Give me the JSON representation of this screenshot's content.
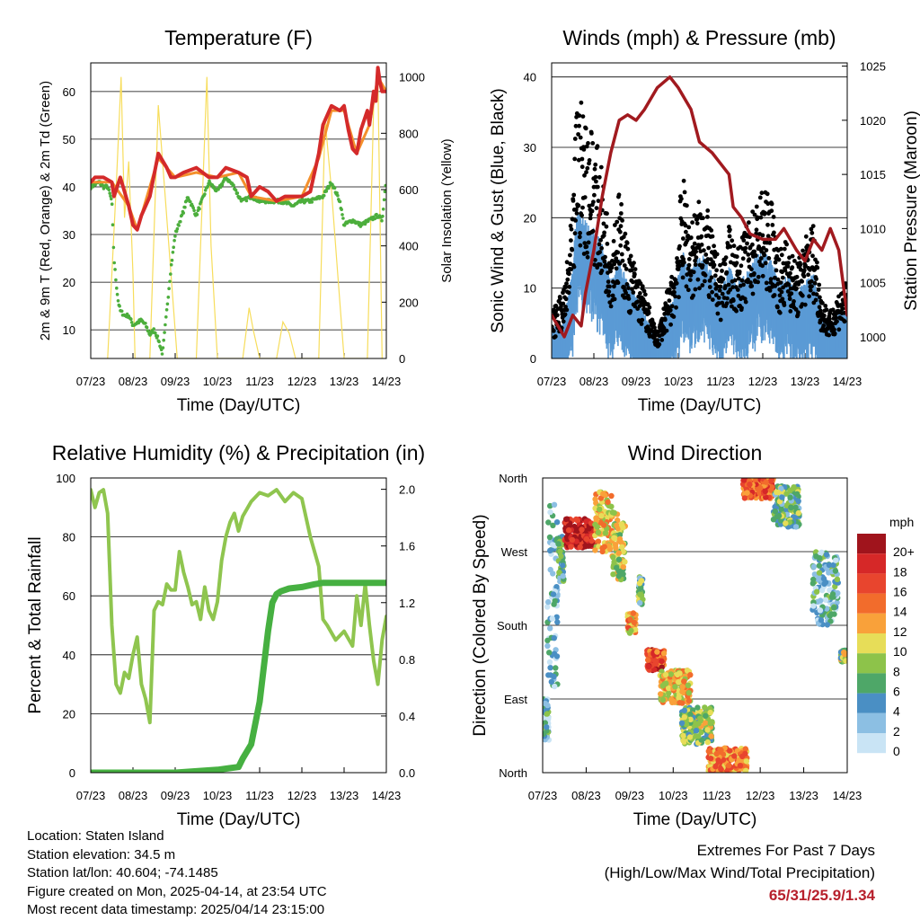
{
  "chart_data": [
    {
      "id": "temperature",
      "type": "line",
      "title": "Temperature (F)",
      "xlabel": "Time (Day/UTC)",
      "ylabel_left": "2m & 9m T (Red, Orange) & 2m Td (Green)",
      "ylabel_right": "Solar Insolation (Yellow)",
      "x_ticks": [
        "07/23",
        "08/23",
        "09/23",
        "10/23",
        "11/23",
        "12/23",
        "13/23",
        "14/23"
      ],
      "xlim": [
        0,
        7
      ],
      "ylim_left": [
        4,
        66
      ],
      "ylim_right": [
        0,
        1050
      ],
      "y_ticks_left": [
        10,
        20,
        30,
        40,
        50,
        60
      ],
      "y_ticks_right": [
        0,
        200,
        400,
        600,
        800,
        1000
      ],
      "grid": true,
      "colors": {
        "t2m": "#d42a2a",
        "t9m": "#f4902c",
        "td": "#4cae3c",
        "solar": "#f7dd5c"
      },
      "series": [
        {
          "key": "t2m",
          "axis": "left",
          "x": [
            0,
            0.1,
            0.3,
            0.5,
            0.55,
            0.7,
            0.9,
            1.0,
            1.1,
            1.2,
            1.4,
            1.6,
            1.8,
            1.9,
            2.0,
            2.2,
            2.5,
            2.8,
            3.0,
            3.2,
            3.5,
            3.7,
            3.8,
            4.0,
            4.2,
            4.4,
            4.6,
            4.8,
            5.0,
            5.2,
            5.4,
            5.5,
            5.7,
            5.9,
            6.0,
            6.1,
            6.2,
            6.3,
            6.4,
            6.55,
            6.6,
            6.7,
            6.75,
            6.8,
            6.85,
            6.9,
            7.0
          ],
          "y": [
            41,
            42,
            42,
            41,
            38,
            42,
            36,
            32,
            31,
            34,
            38,
            47,
            44,
            42,
            42,
            43,
            44,
            42,
            42,
            44,
            43,
            42,
            38,
            40,
            39,
            37,
            38,
            38,
            38,
            39,
            47,
            53,
            57,
            56,
            57,
            52,
            48,
            47,
            52,
            56,
            53,
            60,
            58,
            65,
            62,
            60,
            60
          ]
        },
        {
          "key": "t9m",
          "axis": "left",
          "x": [
            0,
            0.5,
            0.9,
            1.1,
            1.6,
            2.0,
            2.5,
            3.0,
            3.5,
            3.8,
            4.4,
            5.0,
            5.4,
            5.7,
            6.0,
            6.3,
            6.6,
            6.8,
            7.0
          ],
          "y": [
            41,
            41,
            36,
            31,
            46,
            42,
            43,
            42,
            43,
            38,
            37,
            38,
            46,
            56,
            56,
            47,
            53,
            63,
            60
          ]
        },
        {
          "key": "td",
          "axis": "left",
          "x": [
            0,
            0.2,
            0.3,
            0.4,
            0.5,
            0.55,
            0.6,
            0.65,
            0.7,
            0.8,
            0.9,
            1.0,
            1.2,
            1.3,
            1.4,
            1.5,
            1.6,
            1.7,
            1.9,
            2.0,
            2.2,
            2.3,
            2.5,
            2.8,
            3.0,
            3.2,
            3.4,
            3.5,
            3.6,
            3.8,
            4.0,
            4.2,
            4.5,
            4.8,
            5.0,
            5.2,
            5.5,
            5.7,
            5.9,
            6.0,
            6.2,
            6.4,
            6.6,
            6.8,
            6.9,
            7.0
          ],
          "y": [
            40,
            41,
            40,
            40,
            37,
            25,
            20,
            16,
            14,
            13,
            13,
            11,
            12,
            11,
            9,
            10,
            8,
            5,
            23,
            30,
            35,
            38,
            34,
            41,
            39,
            42,
            40,
            38,
            37,
            38,
            37,
            37,
            37,
            36,
            37,
            37,
            38,
            41,
            37,
            32,
            33,
            32,
            33,
            34,
            33,
            42
          ]
        },
        {
          "key": "solar",
          "axis": "right",
          "x": [
            0.4,
            0.6,
            0.72,
            0.8,
            0.9,
            1.0,
            1.05,
            1.4,
            1.6,
            1.75,
            1.9,
            2.05,
            2.5,
            2.65,
            2.75,
            2.85,
            3.0,
            3.6,
            3.75,
            3.85,
            4.0,
            4.4,
            4.55,
            4.7,
            4.85,
            5.4,
            5.55,
            5.7,
            5.85,
            6.0,
            6.55,
            6.7,
            6.8,
            6.9
          ],
          "y": [
            0,
            600,
            1000,
            500,
            700,
            300,
            0,
            0,
            900,
            600,
            300,
            0,
            0,
            600,
            1000,
            400,
            0,
            0,
            180,
            100,
            0,
            0,
            130,
            90,
            0,
            0,
            850,
            600,
            300,
            0,
            0,
            900,
            1000,
            0
          ]
        }
      ]
    },
    {
      "id": "winds",
      "type": "scatter",
      "title": "Winds (mph) & Pressure (mb)",
      "xlabel": "Time (Day/UTC)",
      "ylabel_left": "Sonic Wind & Gust (Blue, Black)",
      "ylabel_right": "Station Pressure (Maroon)",
      "x_ticks": [
        "07/23",
        "08/23",
        "09/23",
        "10/23",
        "11/23",
        "12/23",
        "13/23",
        "14/23"
      ],
      "xlim": [
        0,
        7
      ],
      "ylim_left": [
        0,
        42
      ],
      "ylim_right": [
        998,
        1025.3
      ],
      "y_ticks_left": [
        0,
        10,
        20,
        30,
        40
      ],
      "y_ticks_right": [
        1000,
        1005,
        1010,
        1015,
        1020,
        1025
      ],
      "grid": true,
      "colors": {
        "wind": "#5b9bd5",
        "gust": "#000000",
        "pressure": "#a11a1f"
      },
      "series": [
        {
          "key": "gust_envelope",
          "axis": "left",
          "x": [
            0,
            0.3,
            0.5,
            0.6,
            0.8,
            1.0,
            1.2,
            1.4,
            1.6,
            1.8,
            2.0,
            2.2,
            2.5,
            2.7,
            2.9,
            3.1,
            3.3,
            3.6,
            3.8,
            4.0,
            4.2,
            4.4,
            4.6,
            4.8,
            5.0,
            5.2,
            5.4,
            5.6,
            5.8,
            6.0,
            6.2,
            6.4,
            6.6,
            6.8,
            7.0
          ],
          "y": [
            6,
            9,
            20,
            35,
            32,
            30,
            24,
            16,
            22,
            15,
            12,
            9,
            3,
            8,
            12,
            24,
            18,
            22,
            16,
            12,
            17,
            14,
            17,
            20,
            22,
            21,
            14,
            16,
            12,
            16,
            18,
            8,
            6,
            9,
            10
          ]
        },
        {
          "key": "wind_envelope",
          "axis": "left",
          "x": [
            0,
            0.3,
            0.5,
            0.6,
            0.8,
            1.0,
            1.2,
            1.4,
            1.6,
            1.8,
            2.0,
            2.2,
            2.5,
            2.7,
            2.9,
            3.1,
            3.3,
            3.6,
            3.8,
            4.0,
            4.2,
            4.4,
            4.6,
            4.8,
            5.0,
            5.2,
            5.4,
            5.6,
            5.8,
            6.0,
            6.2,
            6.4,
            6.6,
            6.8,
            7.0
          ],
          "y": [
            4,
            5,
            12,
            20,
            18,
            17,
            15,
            10,
            13,
            10,
            8,
            6,
            2,
            6,
            8,
            14,
            12,
            14,
            11,
            9,
            12,
            10,
            11,
            13,
            14,
            13,
            10,
            11,
            9,
            10,
            11,
            6,
            4,
            6,
            7
          ]
        },
        {
          "key": "pressure",
          "axis": "right",
          "x": [
            0,
            0.3,
            0.5,
            0.7,
            0.8,
            1.0,
            1.2,
            1.4,
            1.6,
            1.8,
            2.0,
            2.2,
            2.5,
            2.8,
            3.0,
            3.3,
            3.5,
            3.8,
            4.0,
            4.2,
            4.3,
            4.5,
            4.7,
            5.0,
            5.3,
            5.5,
            5.8,
            6.0,
            6.2,
            6.4,
            6.6,
            6.8,
            7.0
          ],
          "y": [
            1002,
            1000,
            1002,
            1001,
            1004,
            1008,
            1013,
            1017,
            1020,
            1020.5,
            1020,
            1021,
            1023,
            1024,
            1023,
            1021,
            1018,
            1017,
            1016,
            1015,
            1012,
            1011,
            1009.5,
            1009,
            1009,
            1010,
            1008,
            1007,
            1009,
            1008,
            1010,
            1008,
            1002
          ]
        }
      ]
    },
    {
      "id": "humidity",
      "type": "line",
      "title": "Relative Humidity (%) & Precipitation (in)",
      "xlabel": "Time (Day/UTC)",
      "ylabel_left": "Percent & Total Rainfall",
      "x_ticks": [
        "07/23",
        "08/23",
        "09/23",
        "10/23",
        "11/23",
        "12/23",
        "13/23",
        "14/23"
      ],
      "xlim": [
        0,
        7
      ],
      "ylim_left": [
        0,
        100
      ],
      "ylim_right": [
        0,
        2.08
      ],
      "y_ticks_left": [
        0,
        20,
        40,
        60,
        80,
        100
      ],
      "y_ticks_right": [
        "0.0",
        "0.4",
        "0.8",
        "1.2",
        "1.6",
        "2.0"
      ],
      "grid": true,
      "colors": {
        "rh": "#8fc54f",
        "precip": "#46b041"
      },
      "series": [
        {
          "key": "rh",
          "axis": "left",
          "x": [
            0,
            0.1,
            0.2,
            0.3,
            0.4,
            0.5,
            0.6,
            0.7,
            0.8,
            0.9,
            1.0,
            1.1,
            1.2,
            1.3,
            1.4,
            1.5,
            1.6,
            1.7,
            1.8,
            1.9,
            2.0,
            2.1,
            2.2,
            2.3,
            2.4,
            2.5,
            2.6,
            2.7,
            2.8,
            2.9,
            3.0,
            3.1,
            3.2,
            3.3,
            3.4,
            3.5,
            3.6,
            3.8,
            4.0,
            4.2,
            4.4,
            4.6,
            4.8,
            5.0,
            5.2,
            5.4,
            5.5,
            5.6,
            5.8,
            6.0,
            6.2,
            6.3,
            6.4,
            6.5,
            6.6,
            6.7,
            6.8,
            6.9,
            7.0
          ],
          "y": [
            96,
            90,
            95,
            96,
            88,
            50,
            30,
            27,
            34,
            32,
            40,
            46,
            30,
            25,
            17,
            55,
            58,
            57,
            64,
            62,
            62,
            75,
            68,
            63,
            57,
            58,
            52,
            63,
            55,
            52,
            58,
            72,
            80,
            85,
            88,
            82,
            87,
            92,
            95,
            94,
            96,
            92,
            95,
            93,
            80,
            70,
            52,
            50,
            45,
            48,
            43,
            60,
            50,
            64,
            50,
            38,
            30,
            45,
            53
          ]
        },
        {
          "key": "precip",
          "axis": "right",
          "x": [
            0,
            1,
            2,
            3,
            3.5,
            3.6,
            3.8,
            4.0,
            4.2,
            4.3,
            4.4,
            4.5,
            4.7,
            5.0,
            5.3,
            5.5,
            6.0,
            7.0
          ],
          "y": [
            0,
            0,
            0,
            0.02,
            0.04,
            0.1,
            0.2,
            0.5,
            1.0,
            1.2,
            1.26,
            1.28,
            1.3,
            1.31,
            1.33,
            1.34,
            1.34,
            1.34
          ]
        }
      ]
    },
    {
      "id": "wind_direction",
      "type": "scatter",
      "title": "Wind Direction",
      "xlabel": "Time (Day/UTC)",
      "ylabel": "Direction (Colored By Speed)",
      "x_ticks": [
        "07/23",
        "08/23",
        "09/23",
        "10/23",
        "11/23",
        "12/23",
        "13/23",
        "14/23"
      ],
      "xlim": [
        0,
        7
      ],
      "ylim": [
        0,
        360
      ],
      "y_ticks": [
        "North",
        "East",
        "South",
        "West",
        "North"
      ],
      "grid": true,
      "colorbar": {
        "title": "mph",
        "labels": [
          "20+",
          "18",
          "16",
          "14",
          "12",
          "10",
          "8",
          "6",
          "4",
          "2",
          "0"
        ],
        "colors": [
          "#a0141c",
          "#d62828",
          "#e8452e",
          "#f26c2c",
          "#f9a13a",
          "#e7dd58",
          "#8dc34a",
          "#4ea768",
          "#4a8fc4",
          "#8cbfe3",
          "#c9e4f5"
        ]
      },
      "clusters": [
        {
          "x": [
            0.0,
            0.15
          ],
          "dir": [
            40,
            90
          ],
          "speed": 4
        },
        {
          "x": [
            0.1,
            0.35
          ],
          "dir": [
            100,
            330
          ],
          "speed": 3
        },
        {
          "x": [
            0.35,
            0.5
          ],
          "dir": [
            230,
            290
          ],
          "speed": 5
        },
        {
          "x": [
            0.5,
            1.2
          ],
          "dir": [
            275,
            310
          ],
          "speed": 19
        },
        {
          "x": [
            1.2,
            1.6
          ],
          "dir": [
            270,
            345
          ],
          "speed": 11
        },
        {
          "x": [
            1.6,
            1.9
          ],
          "dir": [
            235,
            320
          ],
          "speed": 9
        },
        {
          "x": [
            1.95,
            2.15
          ],
          "dir": [
            170,
            195
          ],
          "speed": 12
        },
        {
          "x": [
            2.2,
            2.3
          ],
          "dir": [
            205,
            240
          ],
          "speed": 6
        },
        {
          "x": [
            2.4,
            2.8
          ],
          "dir": [
            125,
            150
          ],
          "speed": 16
        },
        {
          "x": [
            2.7,
            3.4
          ],
          "dir": [
            85,
            125
          ],
          "speed": 11
        },
        {
          "x": [
            3.2,
            3.9
          ],
          "dir": [
            35,
            80
          ],
          "speed": 8
        },
        {
          "x": [
            3.8,
            4.7
          ],
          "dir": [
            2,
            30
          ],
          "speed": 13
        },
        {
          "x": [
            4.6,
            5.3
          ],
          "dir": [
            335,
            360
          ],
          "speed": 15
        },
        {
          "x": [
            5.3,
            5.9
          ],
          "dir": [
            300,
            350
          ],
          "speed": 6
        },
        {
          "x": [
            6.2,
            6.8
          ],
          "dir": [
            180,
            270
          ],
          "speed": 4
        },
        {
          "x": [
            6.85,
            7.0
          ],
          "dir": [
            135,
            150
          ],
          "speed": 8
        }
      ]
    }
  ],
  "info": {
    "location": "Location: Staten Island",
    "elevation": "Station elevation: 34.5 m",
    "latlon": "Station lat/lon: 40.604; -74.1485",
    "created": "Figure created on Mon, 2025-04-14, at 23:54 UTC",
    "latest": "Most recent data timestamp: 2025/04/14 23:15:00"
  },
  "extremes": {
    "title": "Extremes For Past 7 Days",
    "subtitle": "(High/Low/Max Wind/Total Precipitation)",
    "values": "65/31/25.9/1.34"
  }
}
